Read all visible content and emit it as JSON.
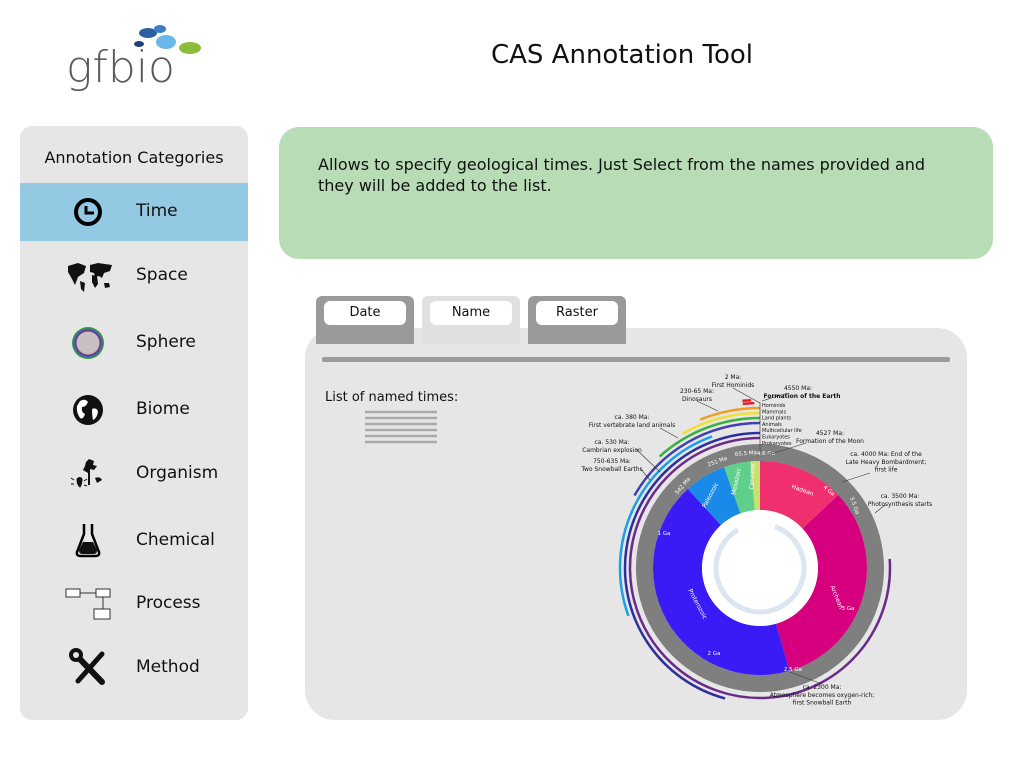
{
  "header": {
    "logo": "gfbio",
    "title": "CAS Annotation Tool"
  },
  "sidebar": {
    "heading": "Annotation Categories",
    "items": [
      "Time",
      "Space",
      "Sphere",
      "Biome",
      "Organism",
      "Chemical",
      "Process",
      "Method"
    ]
  },
  "description": "Allows to specify geological times. Just Select from the names provided and they will be added to the list.",
  "tabs": [
    "Date",
    "Name",
    "Raster"
  ],
  "list_label": "List of named times:",
  "clock": {
    "eons": [
      "Hadean",
      "Archean",
      "Proterozoic",
      "Paleozoic",
      "Mesozoic",
      "Cenozoic"
    ],
    "ticks": [
      "4.6 Ga",
      "4 Ga",
      "3.5 Ga",
      "3 Ga",
      "2.5 Ga",
      "2 Ga",
      "1 Ga",
      "542 Ma",
      "251 Ma",
      "65.5 Ma"
    ],
    "life": [
      "Hominids",
      "Mammals",
      "Land plants",
      "Animals",
      "Multicellular life",
      "Eukaryotes",
      "Prokaryotes"
    ],
    "events": [
      [
        "2 Ma:",
        "First Hominids"
      ],
      [
        "230-65 Ma:",
        "Dinosaurs"
      ],
      [
        "4550 Ma:",
        "Formation of the Earth"
      ],
      [
        "ca. 380 Ma:",
        "First vertebrate land animals"
      ],
      [
        "4527 Ma:",
        "Formation of the Moon"
      ],
      [
        "ca. 530 Ma:",
        "Cambrian explosion"
      ],
      [
        "ca. 4000 Ma: End of the",
        "Late Heavy Bombardment;",
        "first life"
      ],
      [
        "750-635 Ma:",
        "Two Snowball Earths"
      ],
      [
        "ca. 3500 Ma:",
        "Photosynthesis starts"
      ],
      [
        "ca. 2300 Ma:",
        "Atmosphere becomes oxygen-rich;",
        "first Snowball Earth"
      ]
    ]
  }
}
